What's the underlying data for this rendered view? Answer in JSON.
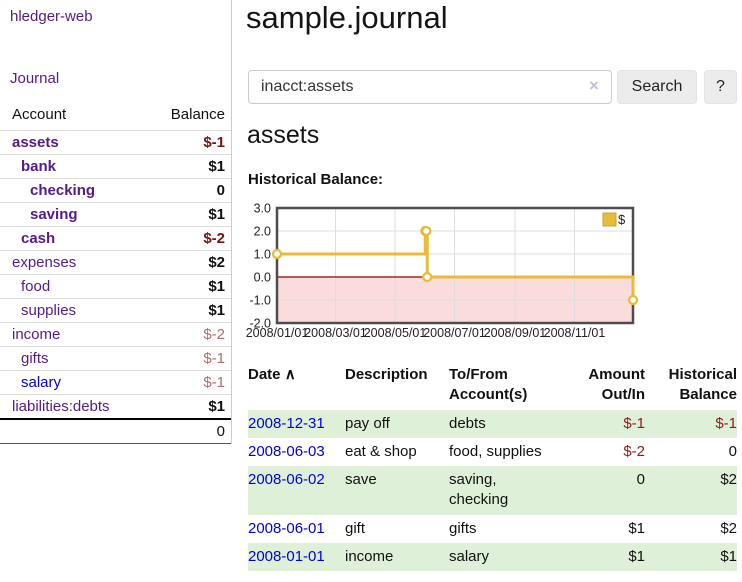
{
  "app": {
    "title": "hledger-web",
    "nav_journal_label": "Journal"
  },
  "sidebar": {
    "columns": {
      "account": "Account",
      "balance": "Balance"
    },
    "accounts": [
      {
        "name": "assets",
        "balance": "$-1",
        "level": 1,
        "bold": true,
        "balance_style": "neg-strong"
      },
      {
        "name": "bank",
        "balance": "$1",
        "level": 2,
        "bold": true,
        "balance_style": "pos"
      },
      {
        "name": "checking",
        "balance": "0",
        "level": 3,
        "bold": true,
        "balance_style": "pos"
      },
      {
        "name": "saving",
        "balance": "$1",
        "level": 3,
        "bold": true,
        "balance_style": "pos"
      },
      {
        "name": "cash",
        "balance": "$-2",
        "level": 2,
        "bold": true,
        "balance_style": "neg-strong"
      },
      {
        "name": "expenses",
        "balance": "$2",
        "level": 1,
        "bold": false,
        "balance_style": "pos"
      },
      {
        "name": "food",
        "balance": "$1",
        "level": 2,
        "bold": false,
        "balance_style": "pos"
      },
      {
        "name": "supplies",
        "balance": "$1",
        "level": 2,
        "bold": false,
        "balance_style": "pos"
      },
      {
        "name": "income",
        "balance": "$-2",
        "level": 1,
        "bold": false,
        "balance_style": "neg-soft"
      },
      {
        "name": "gifts",
        "balance": "$-1",
        "level": 2,
        "bold": false,
        "balance_style": "neg-soft"
      },
      {
        "name": "salary",
        "balance": "$-1",
        "level": 2,
        "bold": false,
        "balance_style": "neg-soft",
        "link_style": "unvisited"
      },
      {
        "name": "liabilities:debts",
        "balance": "$1",
        "level": 1,
        "bold": false,
        "balance_style": "pos"
      }
    ],
    "total": "0"
  },
  "header": {
    "title": "sample.journal"
  },
  "search": {
    "value": "inacct:assets",
    "clear_icon": "×",
    "button_label": "Search",
    "help_label": "?"
  },
  "account_page": {
    "heading": "assets"
  },
  "chart_data": {
    "type": "line",
    "step": true,
    "title": "Historical Balance:",
    "x_domain": [
      "2008/01/01",
      "2008/12/31"
    ],
    "x_tick_labels": [
      "2008/01/01",
      "2008/03/01",
      "2008/05/01",
      "2008/07/01",
      "2008/09/01",
      "2008/11/01"
    ],
    "y_ticks": [
      "3.0",
      "2.0",
      "1.0",
      "0.0",
      "-1.0",
      "-2.0"
    ],
    "ylim": [
      -2,
      3
    ],
    "grid": true,
    "legend_position": "top-right",
    "legend": [
      {
        "label": "$",
        "color": "#e9bb3a"
      }
    ],
    "series": [
      {
        "name": "$",
        "color": "#e9bb3a",
        "points": [
          {
            "x": "2008/01/01",
            "y": 1
          },
          {
            "x": "2008/06/01",
            "y": 2
          },
          {
            "x": "2008/06/02",
            "y": 2
          },
          {
            "x": "2008/06/03",
            "y": 0
          },
          {
            "x": "2008/12/31",
            "y": -1
          }
        ]
      }
    ],
    "zero_line_color": "#8b0000",
    "negative_region_fill": "#fbdcdc",
    "grid_color": "#dddddd",
    "border_color": "#4d4d4d"
  },
  "register": {
    "sort_indicator": "∧",
    "headers": [
      "Date",
      "Description",
      "To/From Account(s)",
      "Amount Out/In",
      "Historical Balance"
    ],
    "rows": [
      {
        "date": "2008-12-31",
        "description": "pay off",
        "accounts": "debts",
        "amount": "$-1",
        "amount_neg": true,
        "balance": "$-1",
        "balance_neg": true,
        "shaded": true
      },
      {
        "date": "2008-06-03",
        "description": "eat & shop",
        "accounts": "food, supplies",
        "amount": "$-2",
        "amount_neg": true,
        "balance": "0",
        "balance_neg": false,
        "shaded": false
      },
      {
        "date": "2008-06-02",
        "description": "save",
        "accounts": "saving, checking",
        "amount": "0",
        "amount_neg": false,
        "balance": "$2",
        "balance_neg": false,
        "shaded": true
      },
      {
        "date": "2008-06-01",
        "description": "gift",
        "accounts": "gifts",
        "amount": "$1",
        "amount_neg": false,
        "balance": "$2",
        "balance_neg": false,
        "shaded": false
      },
      {
        "date": "2008-01-01",
        "description": "income",
        "accounts": "salary",
        "amount": "$1",
        "amount_neg": false,
        "balance": "$1",
        "balance_neg": false,
        "shaded": true
      }
    ]
  }
}
